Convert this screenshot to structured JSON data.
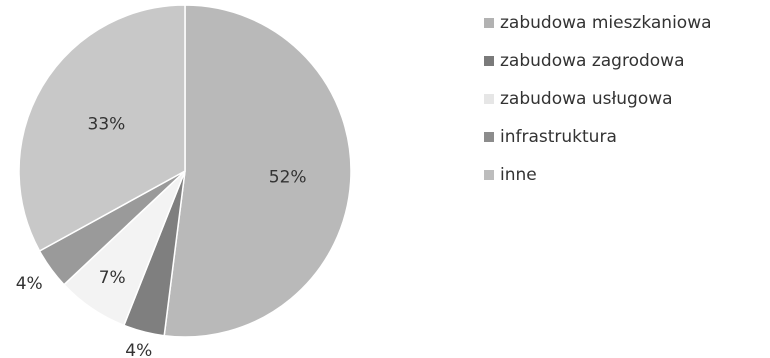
{
  "chart_data": {
    "type": "pie",
    "categories": [
      "zabudowa mieszkaniowa",
      "zabudowa zagrodowa",
      "zabudowa usługowa",
      "infrastruktura",
      "inne"
    ],
    "values": [
      52,
      4,
      7,
      4,
      33
    ],
    "labels": [
      "52%",
      "4%",
      "7%",
      "4%",
      "33%"
    ],
    "colors": [
      "#b9b9b9",
      "#7f7f7f",
      "#f3f3f3",
      "#9a9a9a",
      "#c8c8c8"
    ],
    "start_angle_deg": 0,
    "direction": "clockwise",
    "legend_position": "right"
  },
  "legend": {
    "items": [
      {
        "label": "zabudowa mieszkaniowa",
        "color": "#b2b2b2"
      },
      {
        "label": "zabudowa zagrodowa",
        "color": "#7a7a7a"
      },
      {
        "label": "zabudowa usługowa",
        "color": "#e6e6e6"
      },
      {
        "label": "infrastruktura",
        "color": "#8c8c8c"
      },
      {
        "label": "inne",
        "color": "#bdbdbd"
      }
    ]
  }
}
